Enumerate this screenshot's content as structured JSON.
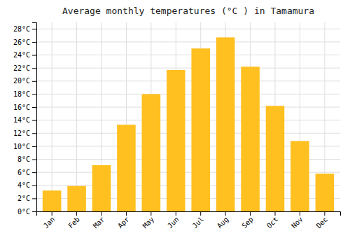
{
  "chart_data": {
    "type": "bar",
    "title": "Average monthly temperatures (°C ) in Tamamura",
    "categories": [
      "Jan",
      "Feb",
      "Mar",
      "Apr",
      "May",
      "Jun",
      "Jul",
      "Aug",
      "Sep",
      "Oct",
      "Nov",
      "Dec"
    ],
    "values": [
      3.2,
      3.9,
      7.1,
      13.3,
      18.0,
      21.7,
      25.0,
      26.7,
      22.2,
      16.2,
      10.8,
      5.8
    ],
    "color": "#FFC020",
    "ylim": [
      0,
      29
    ],
    "yticks": [
      {
        "value": 0,
        "label": "0°C"
      },
      {
        "value": 2,
        "label": "2°C"
      },
      {
        "value": 4,
        "label": "4°C"
      },
      {
        "value": 6,
        "label": "6°C"
      },
      {
        "value": 8,
        "label": "8°C"
      },
      {
        "value": 10,
        "label": "10°C"
      },
      {
        "value": 12,
        "label": "12°C"
      },
      {
        "value": 14,
        "label": "14°C"
      },
      {
        "value": 16,
        "label": "16°C"
      },
      {
        "value": 18,
        "label": "18°C"
      },
      {
        "value": 20,
        "label": "20°C"
      },
      {
        "value": 22,
        "label": "22°C"
      },
      {
        "value": 24,
        "label": "24°C"
      },
      {
        "value": 26,
        "label": "26°C"
      },
      {
        "value": 28,
        "label": "28°C"
      }
    ],
    "grid": true
  }
}
